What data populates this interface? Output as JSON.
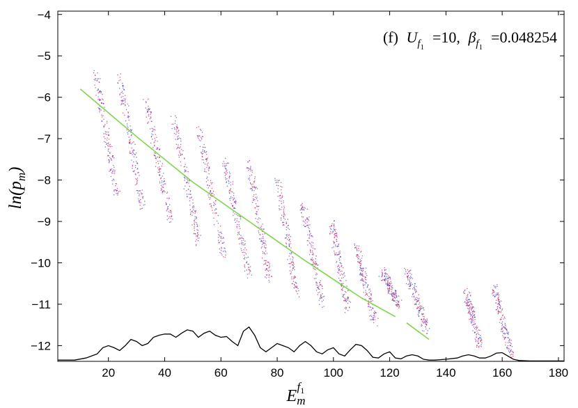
{
  "chart_data": {
    "type": "scatter",
    "title": "",
    "annotation": {
      "panel": "(f)",
      "u_symbol": "U",
      "u_subscript": "f",
      "u_subsubscript": "1",
      "u_value": "=10,",
      "beta_symbol": "β",
      "beta_subscript": "f",
      "beta_subsubscript": "1",
      "beta_value": "=0.048254"
    },
    "xlabel": {
      "base": "E",
      "sub": "m",
      "sup": "f",
      "sup_sub": "1"
    },
    "ylabel": {
      "prefix": "ln(",
      "var": "p",
      "sub": "m",
      "suffix": ")"
    },
    "xlim": [
      2,
      182
    ],
    "ylim": [
      -12.38,
      -3.92
    ],
    "xticks": [
      20,
      40,
      60,
      80,
      100,
      120,
      140,
      160,
      180
    ],
    "yticks": [
      -12,
      -11,
      -10,
      -9,
      -8,
      -7,
      -6,
      -5,
      -4
    ],
    "grid": false,
    "series": [
      {
        "color": "#7cd64a",
        "kind": "line",
        "x": [
          10,
          30,
          50,
          70,
          90,
          110,
          122
        ],
        "y": [
          -5.8,
          -6.95,
          -8.05,
          -9.0,
          -9.95,
          -10.85,
          -11.3
        ]
      },
      {
        "color": "#7cd64a",
        "kind": "line",
        "x": [
          126,
          134
        ],
        "y": [
          -11.45,
          -11.85
        ]
      },
      {
        "kind": "stripes",
        "colors": [
          "#cc2244",
          "#3344cc",
          "#aa22aa"
        ],
        "stripes": [
          {
            "x0": 15,
            "y0": -5.3,
            "x1": 23,
            "y1": -8.4
          },
          {
            "x0": 24,
            "y0": -5.5,
            "x1": 32,
            "y1": -8.7
          },
          {
            "x0": 33,
            "y0": -6.0,
            "x1": 42,
            "y1": -9.0
          },
          {
            "x0": 43,
            "y0": -6.5,
            "x1": 52,
            "y1": -9.5
          },
          {
            "x0": 52,
            "y0": -6.8,
            "x1": 61,
            "y1": -9.9
          },
          {
            "x0": 61,
            "y0": -7.5,
            "x1": 70,
            "y1": -10.3
          },
          {
            "x0": 70,
            "y0": -7.6,
            "x1": 77,
            "y1": -10.4
          },
          {
            "x0": 80,
            "y0": -8.0,
            "x1": 87,
            "y1": -10.8
          },
          {
            "x0": 89,
            "y0": -8.6,
            "x1": 96,
            "y1": -11.0
          },
          {
            "x0": 99,
            "y0": -9.0,
            "x1": 105,
            "y1": -11.1
          },
          {
            "x0": 108,
            "y0": -9.6,
            "x1": 115,
            "y1": -11.5
          },
          {
            "x0": 117,
            "y0": -10.2,
            "x1": 123,
            "y1": -11.0
          },
          {
            "x0": 126,
            "y0": -10.2,
            "x1": 133,
            "y1": -11.6
          },
          {
            "x0": 147,
            "y0": -10.7,
            "x1": 152,
            "y1": -12.0
          },
          {
            "x0": 157,
            "y0": -10.6,
            "x1": 163,
            "y1": -12.2
          }
        ]
      },
      {
        "color": "#000000",
        "kind": "line",
        "x": [
          2,
          8,
          12,
          16,
          18,
          20,
          22,
          24,
          26,
          28,
          30,
          32,
          34,
          36,
          38,
          40,
          42,
          44,
          46,
          48,
          50,
          52,
          54,
          56,
          58,
          60,
          62,
          64,
          66,
          68,
          70,
          72,
          74,
          76,
          78,
          80,
          82,
          84,
          86,
          88,
          90,
          92,
          94,
          96,
          98,
          100,
          102,
          104,
          106,
          108,
          110,
          112,
          114,
          116,
          118,
          120,
          122,
          124,
          126,
          128,
          130,
          132,
          134,
          136,
          138,
          140,
          144,
          146,
          148,
          150,
          152,
          154,
          156,
          158,
          160,
          162,
          164,
          166,
          170,
          182
        ],
        "y": [
          -12.35,
          -12.35,
          -12.3,
          -12.2,
          -12.05,
          -12.0,
          -12.05,
          -12.12,
          -12.0,
          -11.85,
          -11.9,
          -12.0,
          -11.95,
          -11.8,
          -11.75,
          -11.72,
          -11.72,
          -11.8,
          -11.7,
          -11.62,
          -11.65,
          -11.8,
          -11.7,
          -11.65,
          -11.75,
          -11.8,
          -11.78,
          -11.9,
          -12.0,
          -11.65,
          -11.55,
          -11.75,
          -12.05,
          -12.15,
          -12.05,
          -11.95,
          -12.0,
          -12.05,
          -12.15,
          -12.0,
          -11.9,
          -12.0,
          -12.15,
          -12.2,
          -12.1,
          -12.05,
          -12.2,
          -12.25,
          -12.1,
          -11.97,
          -12.0,
          -12.12,
          -12.28,
          -12.3,
          -12.2,
          -12.15,
          -12.3,
          -12.32,
          -12.25,
          -12.22,
          -12.25,
          -12.33,
          -12.35,
          -12.35,
          -12.34,
          -12.33,
          -12.3,
          -12.25,
          -12.22,
          -12.25,
          -12.3,
          -12.3,
          -12.25,
          -12.18,
          -12.17,
          -12.25,
          -12.33,
          -12.36,
          -12.37,
          -12.37
        ]
      }
    ]
  }
}
